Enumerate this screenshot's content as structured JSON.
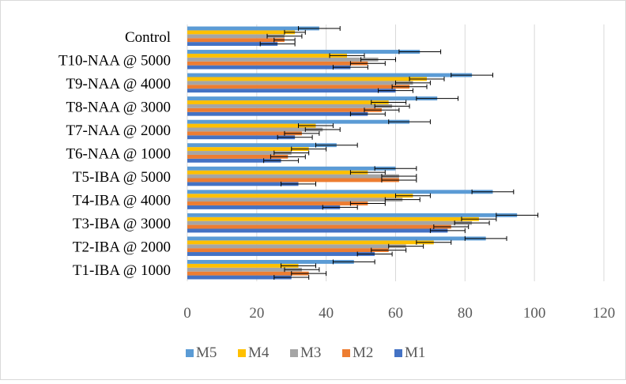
{
  "chart_data": {
    "type": "bar",
    "orientation": "horizontal",
    "categories": [
      "T1-IBA @  1000",
      "T2-IBA @  2000",
      "T3-IBA @  3000",
      "T4-IBA @  4000",
      "T5-IBA @ 5000",
      "T6-NAA @ 1000",
      "T7-NAA @ 2000",
      "T8-NAA @ 3000",
      "T9-NAA @ 4000",
      "T10-NAA @ 5000",
      "Control"
    ],
    "series": [
      {
        "name": "M1",
        "color": "#4472C4",
        "values": [
          30,
          54,
          75,
          44,
          32,
          27,
          31,
          52,
          60,
          47,
          26
        ],
        "errors": [
          5,
          5,
          5,
          5,
          5,
          5,
          5,
          5,
          5,
          5,
          5
        ]
      },
      {
        "name": "M2",
        "color": "#ED7D31",
        "values": [
          35,
          58,
          76,
          52,
          61,
          29,
          33,
          56,
          64,
          52,
          28
        ],
        "errors": [
          5,
          5,
          5,
          5,
          5,
          5,
          5,
          5,
          5,
          5,
          3
        ]
      },
      {
        "name": "M3",
        "color": "#A5A5A5",
        "values": [
          33,
          63,
          82,
          62,
          61,
          30,
          39,
          59,
          65,
          55,
          28
        ],
        "errors": [
          5,
          5,
          5,
          5,
          5,
          5,
          5,
          5,
          5,
          5,
          5
        ]
      },
      {
        "name": "M4",
        "color": "#FFC000",
        "values": [
          32,
          71,
          84,
          65,
          52,
          35,
          37,
          58,
          69,
          46,
          31
        ],
        "errors": [
          5,
          5,
          5,
          5,
          5,
          5,
          5,
          5,
          5,
          5,
          3
        ]
      },
      {
        "name": "M5",
        "color": "#5B9BD5",
        "values": [
          48,
          86,
          95,
          88,
          60,
          43,
          64,
          72,
          82,
          67,
          38
        ],
        "errors": [
          6,
          6,
          6,
          6,
          6,
          6,
          6,
          6,
          6,
          6,
          6
        ]
      }
    ],
    "xlim": [
      0,
      120
    ],
    "xticks": [
      0,
      20,
      40,
      60,
      80,
      100,
      120
    ],
    "grid": true,
    "legend": "bottom",
    "legend_order": [
      "M5",
      "M4",
      "M3",
      "M2",
      "M1"
    ]
  }
}
